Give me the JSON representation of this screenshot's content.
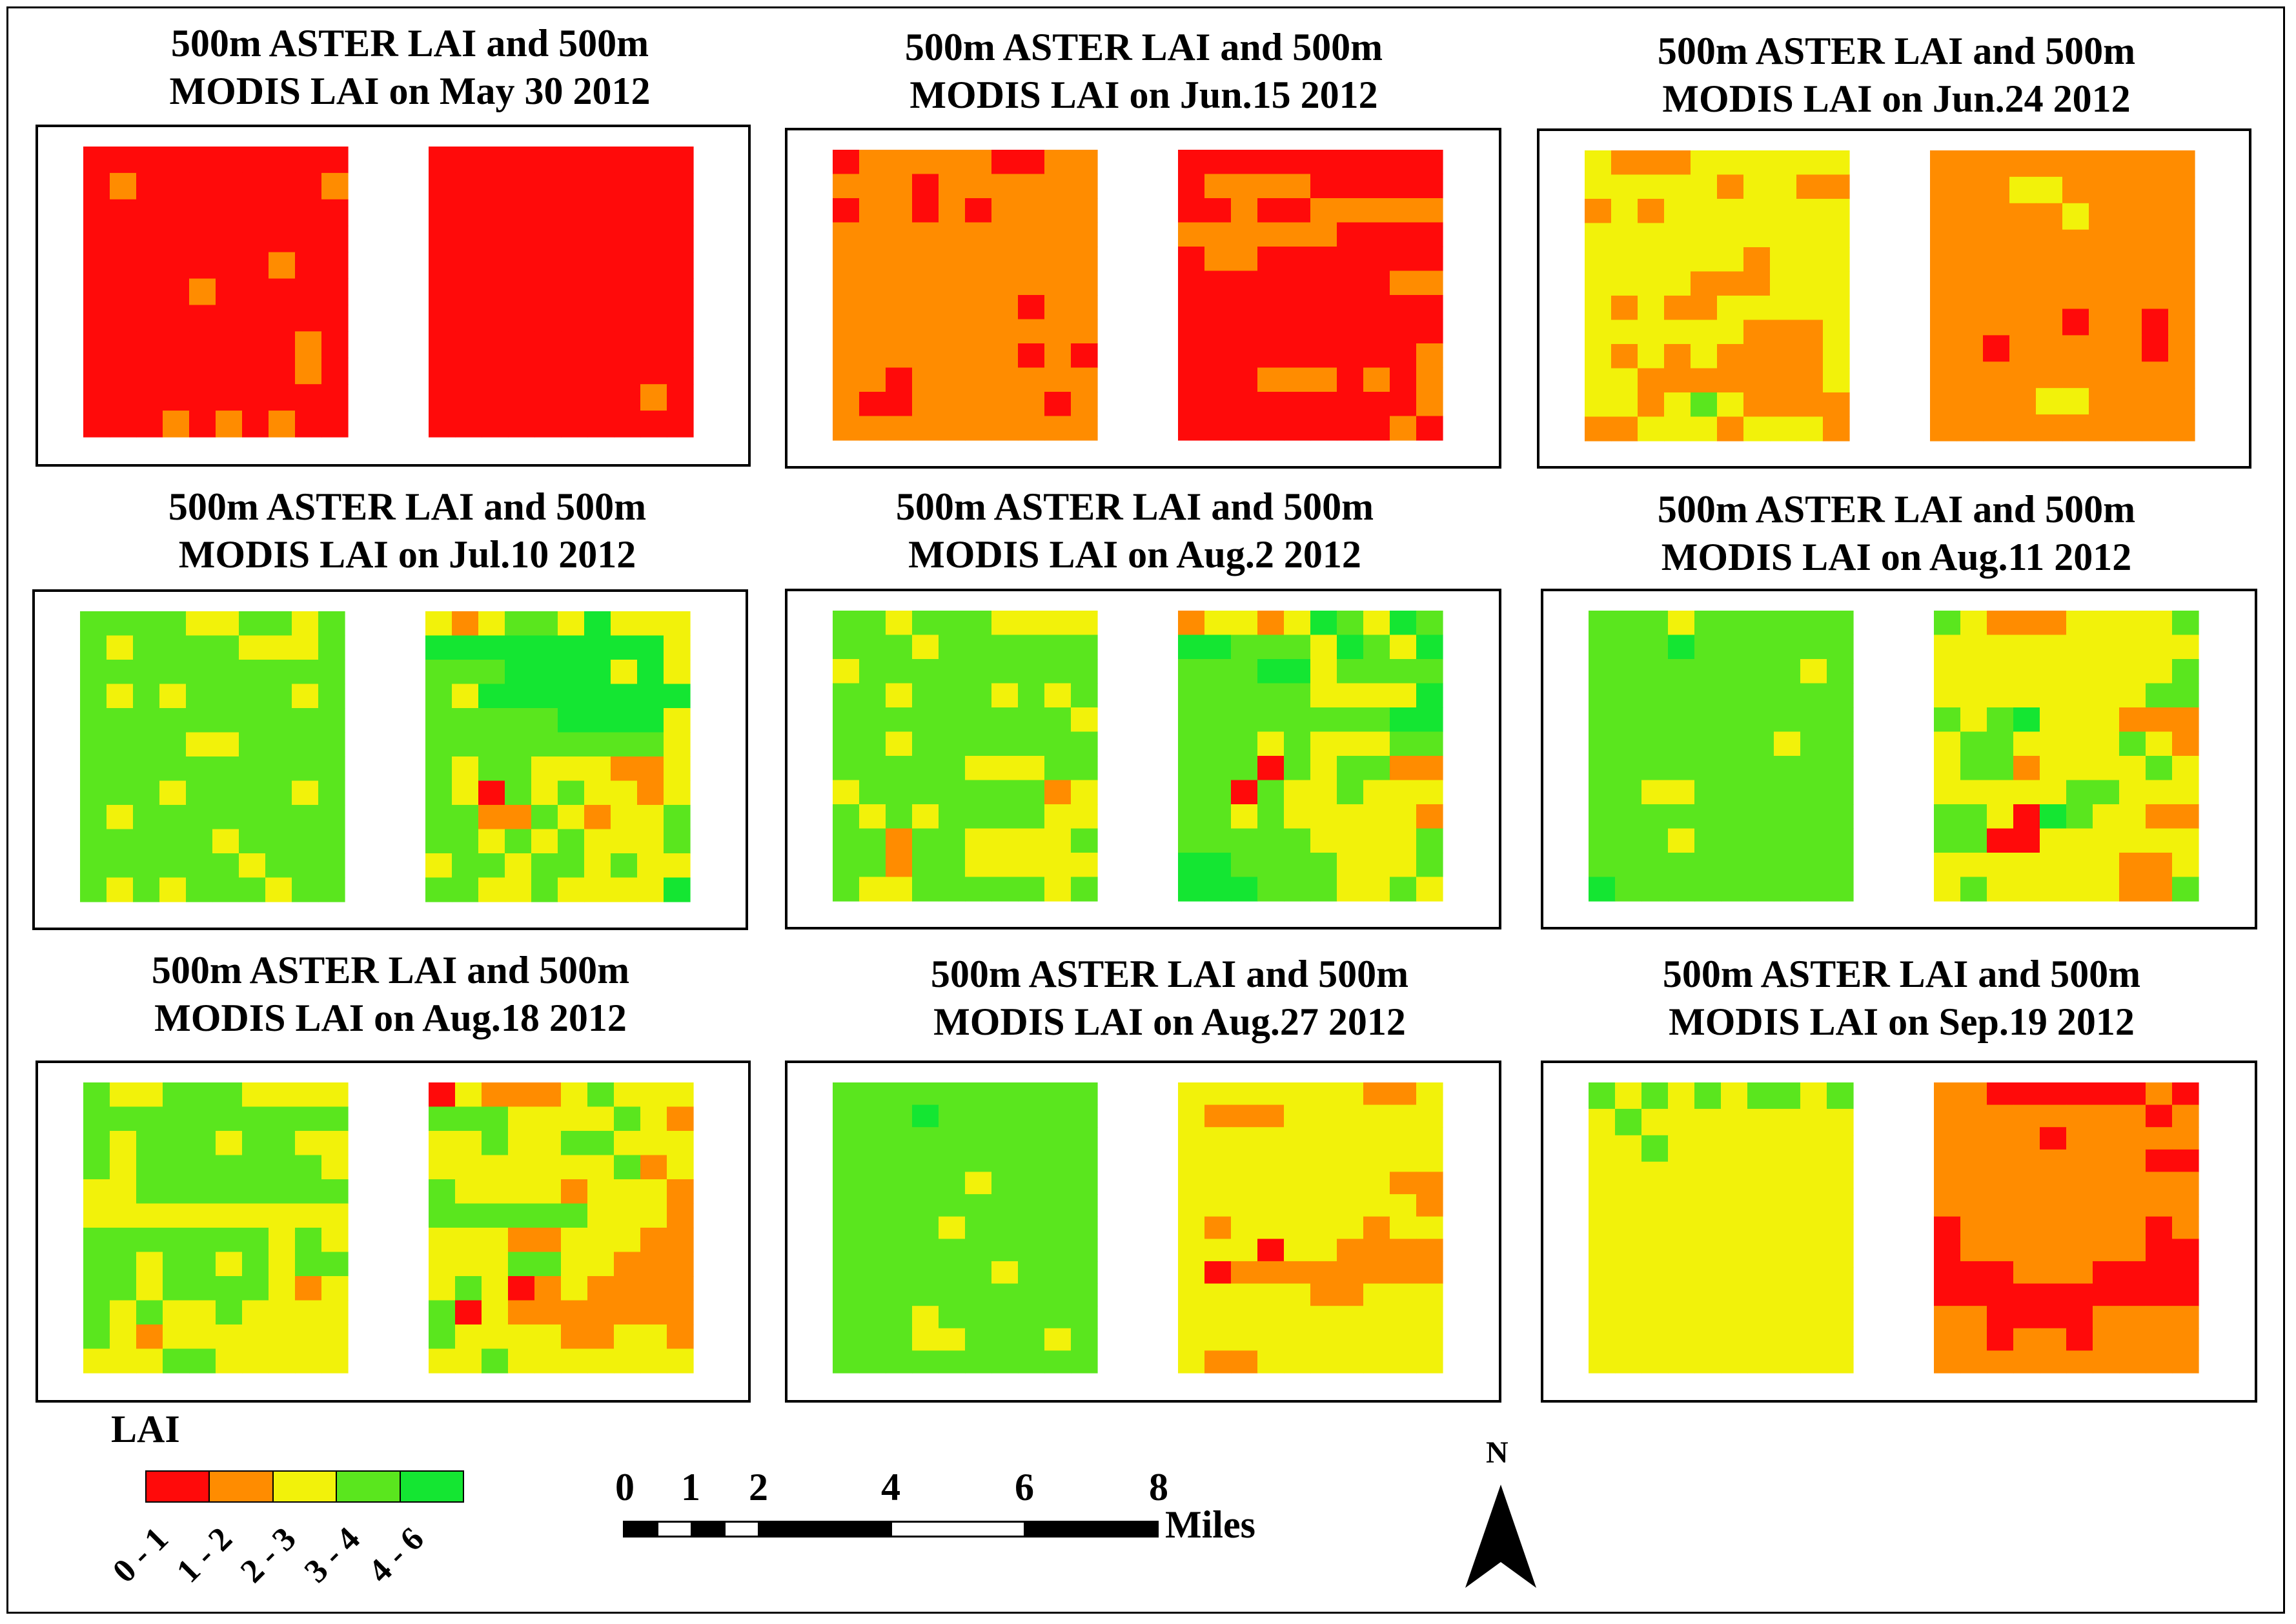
{
  "colors": {
    "c1": "#ff0a0a",
    "c2": "#ff8c00",
    "c3": "#f2f20a",
    "c4": "#5ae61e",
    "c5": "#14e632"
  },
  "panels": [
    {
      "title_line1": "500m ASTER LAI and 500m",
      "title_line2": "MODIS LAI on May 30 2012",
      "aster_grid": [
        "1111111111",
        "1211111112",
        "1111111111",
        "1111111111",
        "1111111211",
        "1111211111",
        "1111111111",
        "1111111121",
        "1111111121",
        "1111111111",
        "1112121211"
      ],
      "modis_grid": [
        "1111111111",
        "1111111111",
        "1111111111",
        "1111111111",
        "1111111111",
        "1111111111",
        "1111111111",
        "1111111111",
        "1111111111",
        "1111111121",
        "1111111111"
      ]
    },
    {
      "title_line1": "500m ASTER LAI and 500m",
      "title_line2": "MODIS LAI on Jun.15 2012",
      "aster_grid": [
        "1222221122",
        "2221222222",
        "1221212222",
        "2222222222",
        "2222222222",
        "2222222222",
        "2222222122",
        "2222222222",
        "2222222121",
        "2212222222",
        "2112222212",
        "2222222222"
      ],
      "modis_grid": [
        "1111111111",
        "1222211111",
        "1121122222",
        "2222221111",
        "1221111111",
        "1111111122",
        "1111111111",
        "1111111111",
        "1111111112",
        "1112221212",
        "1111111112",
        "1111111121"
      ]
    },
    {
      "title_line1": "500m ASTER LAI and 500m",
      "title_line2": "MODIS LAI on Jun.24 2012",
      "aster_grid": [
        "3222333333",
        "3333323322",
        "2323333333",
        "3333333333",
        "3333332333",
        "3333222333",
        "3232233333",
        "3333332223",
        "3232322223",
        "3322222223",
        "3323432222",
        "2233323332"
      ],
      "modis_grid": [
        "2222222222",
        "2223322222",
        "2222232222",
        "2222222222",
        "2222222222",
        "2222222222",
        "2222212212",
        "2212222212",
        "2222222222",
        "2222332222",
        "2222222222"
      ]
    },
    {
      "title_line1": "500m ASTER LAI and 500m",
      "title_line2": "MODIS LAI on Jul.10 2012",
      "aster_grid": [
        "4444334434",
        "4344443334",
        "4444444444",
        "4343444434",
        "4444444444",
        "4444334444",
        "4444444444",
        "4443444434",
        "4344444444",
        "4444434444",
        "4444443444",
        "4343444344"
      ],
      "modis_grid": [
        "3234435333",
        "5555555553",
        "4445555353",
        "4355555555",
        "4444455553",
        "4444444443",
        "4344333223",
        "4314343323",
        "4422432334",
        "4434343334",
        "3443443433",
        "4433433335"
      ]
    },
    {
      "title_line1": "500m ASTER LAI and 500m",
      "title_line2": "MODIS LAI on Aug.2 2012",
      "aster_grid": [
        "4434443333",
        "4443444444",
        "3444444444",
        "4434443434",
        "4444444443",
        "4434444444",
        "4444433344",
        "3444444423",
        "4343444433",
        "4424433334",
        "4424433333",
        "4334444434"
      ],
      "modis_grid": [
        "2332354354",
        "5544435435",
        "4445534444",
        "4444433335",
        "4444444455",
        "4443433344",
        "4441434422",
        "4414334333",
        "4434333332",
        "4444433334",
        "5544443334",
        "5554443343"
      ]
    },
    {
      "title_line1": "500m ASTER LAI and 500m",
      "title_line2": "MODIS LAI on Aug.11 2012",
      "aster_grid": [
        "4443444444",
        "4445444444",
        "4444444434",
        "4444444444",
        "4444444444",
        "4444444344",
        "4444444444",
        "4433444444",
        "4444444444",
        "4443444444",
        "4444444444",
        "5444444444"
      ],
      "modis_grid": [
        "4322233334",
        "3333333333",
        "3333333334",
        "3333333344",
        "4345333222",
        "3443333432",
        "3442333343",
        "3333344333",
        "4431543322",
        "4411333333",
        "3333333223",
        "3433333224"
      ]
    },
    {
      "title_line1": "500m ASTER LAI and 500m",
      "title_line2": "MODIS LAI on Aug.18 2012",
      "aster_grid": [
        "4334443333",
        "4444444444",
        "4344434433",
        "4344444443",
        "3344444444",
        "3333333333",
        "4444444343",
        "4434434344",
        "4434444323",
        "4343343333",
        "4323333333",
        "3334433333"
      ],
      "modis_grid": [
        "1322234333",
        "4443333432",
        "3343344333",
        "3333333423",
        "4333323332",
        "4444443332",
        "3332233322",
        "3334433222",
        "3431232222",
        "4132222222",
        "4333322332",
        "3343333333"
      ]
    },
    {
      "title_line1": "500m ASTER LAI and 500m",
      "title_line2": "MODIS LAI on Aug.27 2012",
      "aster_grid": [
        "4444444444",
        "4445444444",
        "4444444444",
        "4444444444",
        "4444434444",
        "4444444444",
        "4444344444",
        "4444444444",
        "4444443444",
        "4444444444",
        "4443444444",
        "4443344434",
        "4444444444"
      ],
      "modis_grid": [
        "3333333223",
        "3222333333",
        "3333333333",
        "3333333333",
        "3333333322",
        "3333333332",
        "3233333233",
        "3331332222",
        "3122222222",
        "3333322333",
        "3333333333",
        "3333333333",
        "3223333333"
      ]
    },
    {
      "title_line1": "500m ASTER LAI and 500m",
      "title_line2": "MODIS LAI on Sep.19 2012",
      "aster_grid": [
        "4343434434",
        "3433333333",
        "3343333333",
        "3333333333",
        "3333333333",
        "3333333333",
        "3333333333",
        "3333333333",
        "3333333333",
        "3333333333",
        "3333333333"
      ],
      "modis_grid": [
        "2211111121",
        "2222222212",
        "2222122222",
        "2222222211",
        "2222222222",
        "2222222222",
        "1222222212",
        "1222222211",
        "1112221111",
        "1111111111",
        "2211112222",
        "2212212222",
        "2222222222"
      ]
    }
  ],
  "legend": {
    "title": "LAI",
    "classes": [
      "0 - 1",
      "1 - 2",
      "2 - 3",
      "3 - 4",
      "4 - 6"
    ]
  },
  "scale_bar": {
    "ticks": [
      "0",
      "1",
      "2",
      "4",
      "6",
      "8"
    ],
    "unit": "Miles"
  },
  "north": {
    "label": "N"
  }
}
